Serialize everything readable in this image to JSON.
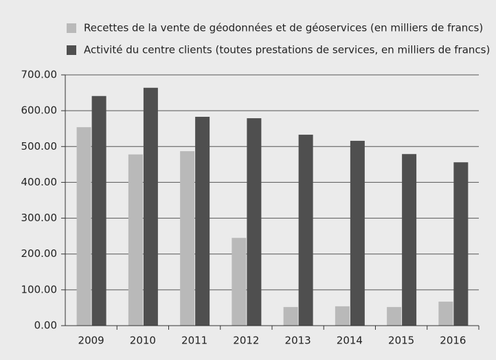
{
  "chart_data": {
    "type": "bar",
    "categories": [
      "2009",
      "2010",
      "2011",
      "2012",
      "2013",
      "2014",
      "2015",
      "2016"
    ],
    "series": [
      {
        "name": "Recettes de la vente de géodonnées et de géoservices (en milliers de francs)",
        "color": "#b9b9b9",
        "values": [
          554,
          478,
          487,
          245,
          52,
          54,
          52,
          67
        ]
      },
      {
        "name": "Activité du centre clients  (toutes prestations de services, en milliers de francs)",
        "color": "#4f4f4f",
        "values": [
          641,
          664,
          583,
          579,
          533,
          516,
          479,
          456
        ]
      }
    ],
    "ylim": [
      0,
      700
    ],
    "yticks": [
      {
        "value": 0,
        "label": "0.00"
      },
      {
        "value": 100,
        "label": "100.00"
      },
      {
        "value": 200,
        "label": "200.00"
      },
      {
        "value": 300,
        "label": "300.00"
      },
      {
        "value": 400,
        "label": "400.00"
      },
      {
        "value": 500,
        "label": "500.00"
      },
      {
        "value": 600,
        "label": "600.00"
      },
      {
        "value": 700,
        "label": "700.00"
      }
    ],
    "grid": true
  }
}
